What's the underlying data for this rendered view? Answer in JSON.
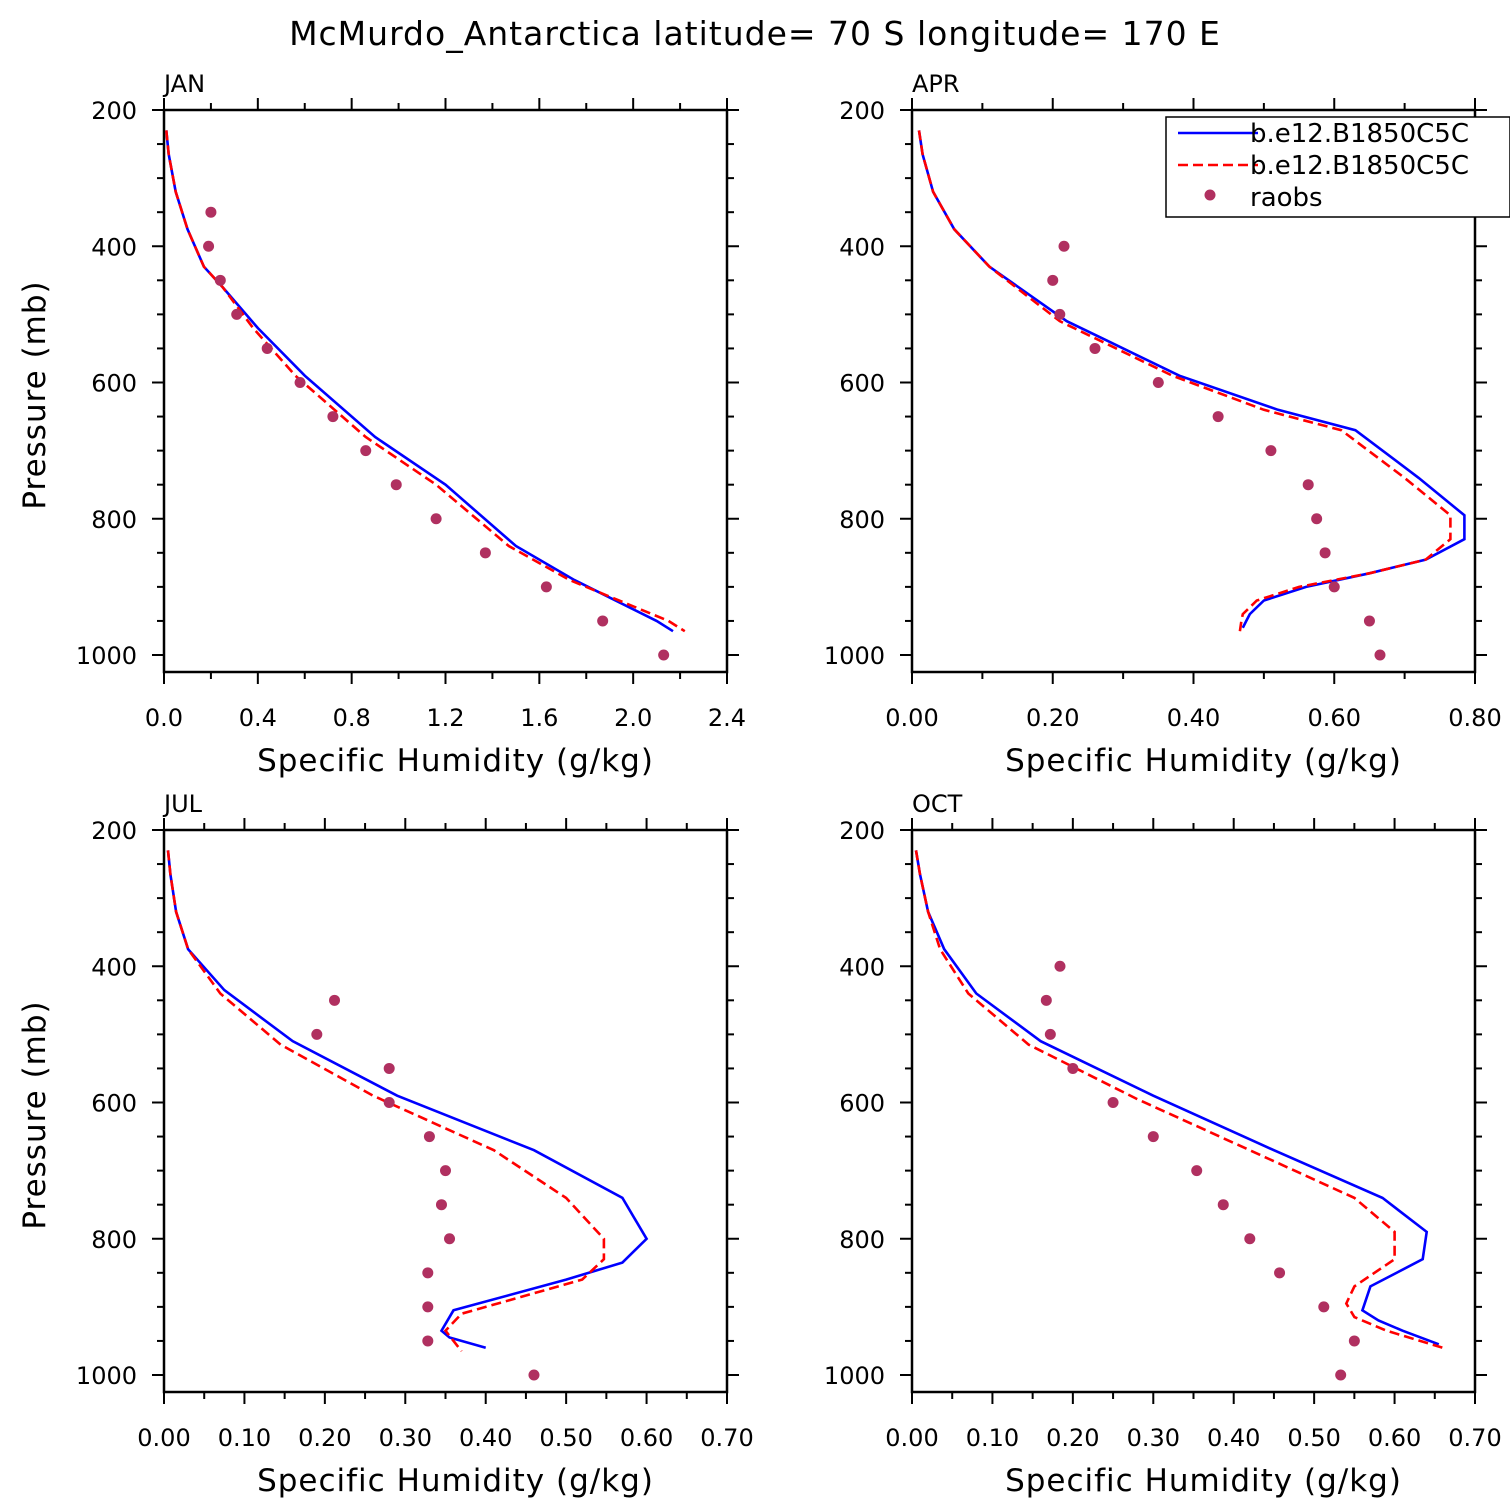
{
  "chart_data": {
    "title": "McMurdo_Antarctica  latitude= 70 S longitude= 170 E",
    "legend": {
      "placement": "top-right",
      "entries": [
        {
          "label": "b.e12.B1850C5C",
          "style": "solid",
          "color": "#0000ff"
        },
        {
          "label": "b.e12.B1850C5C",
          "style": "dashed",
          "color": "#ff0000"
        },
        {
          "label": "raobs",
          "style": "marker",
          "color": "#b03060"
        }
      ]
    },
    "panels": [
      {
        "type": "line",
        "label": "JAN",
        "xlabel": "Specific Humidity (g/kg)",
        "ylabel": "Pressure (mb)",
        "xlim": [
          0,
          2.4
        ],
        "ylim": [
          200,
          1025
        ],
        "xticks": [
          "0.0",
          "0.4",
          "0.8",
          "1.2",
          "1.6",
          "2.0",
          "2.4"
        ],
        "yticks": [
          "200",
          "400",
          "600",
          "800",
          "1000"
        ],
        "series": [
          {
            "name": "b.e12.B1850C5C",
            "x": [
              0.01,
              0.02,
              0.05,
              0.1,
              0.17,
              0.25,
              0.4,
              0.6,
              0.9,
              1.2,
              1.5,
              1.75,
              2.1,
              2.17
            ],
            "y": [
              230,
              265,
              320,
              375,
              430,
              460,
              520,
              590,
              680,
              750,
              840,
              890,
              950,
              965
            ]
          },
          {
            "name": "b.e12.B1850C5C",
            "x": [
              0.01,
              0.02,
              0.05,
              0.1,
              0.17,
              0.25,
              0.38,
              0.56,
              0.86,
              1.16,
              1.47,
              1.73,
              2.15,
              2.22
            ],
            "y": [
              230,
              265,
              320,
              375,
              430,
              460,
              520,
              590,
              680,
              750,
              840,
              890,
              950,
              965
            ]
          },
          {
            "name": "raobs",
            "x": [
              0.2,
              0.19,
              0.24,
              0.31,
              0.44,
              0.58,
              0.72,
              0.86,
              0.99,
              1.16,
              1.37,
              1.63,
              1.87,
              2.13
            ],
            "y": [
              350,
              400,
              450,
              500,
              550,
              600,
              650,
              700,
              750,
              800,
              850,
              900,
              950,
              1000
            ]
          }
        ]
      },
      {
        "type": "line",
        "label": "APR",
        "xlabel": "Specific Humidity (g/kg)",
        "ylabel": "",
        "xlim": [
          0,
          0.8
        ],
        "ylim": [
          200,
          1025
        ],
        "xticks": [
          "0.00",
          "0.20",
          "0.40",
          "0.60",
          "0.80"
        ],
        "yticks": [
          "200",
          "400",
          "600",
          "800",
          "1000"
        ],
        "series": [
          {
            "name": "b.e12.B1850C5C",
            "x": [
              0.01,
              0.015,
              0.03,
              0.06,
              0.11,
              0.22,
              0.28,
              0.38,
              0.52,
              0.63,
              0.72,
              0.785,
              0.785,
              0.73,
              0.65,
              0.56,
              0.5,
              0.48,
              0.475,
              0.47
            ],
            "y": [
              230,
              265,
              320,
              375,
              430,
              510,
              540,
              590,
              640,
              670,
              740,
              795,
              830,
              860,
              880,
              900,
              920,
              940,
              950,
              960
            ]
          },
          {
            "name": "b.e12.B1850C5C",
            "x": [
              0.01,
              0.015,
              0.03,
              0.06,
              0.11,
              0.21,
              0.27,
              0.37,
              0.5,
              0.61,
              0.7,
              0.765,
              0.765,
              0.73,
              0.65,
              0.55,
              0.49,
              0.47,
              0.468,
              0.466
            ],
            "y": [
              230,
              265,
              320,
              375,
              430,
              510,
              540,
              590,
              640,
              670,
              740,
              795,
              830,
              860,
              880,
              900,
              920,
              940,
              950,
              965
            ]
          },
          {
            "name": "raobs",
            "x": [
              0.216,
              0.2,
              0.21,
              0.26,
              0.35,
              0.435,
              0.51,
              0.563,
              0.575,
              0.587,
              0.6,
              0.65,
              0.665
            ],
            "y": [
              400,
              450,
              500,
              550,
              600,
              650,
              700,
              750,
              800,
              850,
              900,
              950,
              1000
            ]
          }
        ]
      },
      {
        "type": "line",
        "label": "JUL",
        "xlabel": "Specific Humidity (g/kg)",
        "ylabel": "Pressure (mb)",
        "xlim": [
          0,
          0.7
        ],
        "ylim": [
          200,
          1025
        ],
        "xticks": [
          "0.00",
          "0.10",
          "0.20",
          "0.30",
          "0.40",
          "0.50",
          "0.60",
          "0.70"
        ],
        "yticks": [
          "200",
          "400",
          "600",
          "800",
          "1000"
        ],
        "series": [
          {
            "name": "b.e12.B1850C5C",
            "x": [
              0.005,
              0.008,
              0.015,
              0.03,
              0.075,
              0.16,
              0.29,
              0.46,
              0.57,
              0.6,
              0.57,
              0.5,
              0.36,
              0.345,
              0.355,
              0.4
            ],
            "y": [
              230,
              265,
              320,
              375,
              435,
              510,
              590,
              670,
              740,
              800,
              835,
              860,
              905,
              935,
              945,
              960
            ]
          },
          {
            "name": "b.e12.B1850C5C",
            "x": [
              0.005,
              0.008,
              0.015,
              0.03,
              0.07,
              0.145,
              0.26,
              0.41,
              0.5,
              0.547,
              0.547,
              0.52,
              0.43,
              0.37,
              0.35,
              0.37
            ],
            "y": [
              230,
              265,
              320,
              375,
              440,
              515,
              590,
              670,
              740,
              800,
              830,
              860,
              890,
              910,
              935,
              965
            ]
          },
          {
            "name": "raobs",
            "x": [
              0.212,
              0.19,
              0.28,
              0.28,
              0.33,
              0.35,
              0.345,
              0.355,
              0.328,
              0.328,
              0.328,
              0.46
            ],
            "y": [
              450,
              500,
              550,
              600,
              650,
              700,
              750,
              800,
              850,
              900,
              950,
              1000
            ]
          }
        ]
      },
      {
        "type": "line",
        "label": "OCT",
        "xlabel": "Specific Humidity (g/kg)",
        "ylabel": "",
        "xlim": [
          0,
          0.7
        ],
        "ylim": [
          200,
          1025
        ],
        "xticks": [
          "0.00",
          "0.10",
          "0.20",
          "0.30",
          "0.40",
          "0.50",
          "0.60",
          "0.70"
        ],
        "yticks": [
          "200",
          "400",
          "600",
          "800",
          "1000"
        ],
        "series": [
          {
            "name": "b.e12.B1850C5C",
            "x": [
              0.005,
              0.01,
              0.02,
              0.04,
              0.08,
              0.16,
              0.3,
              0.45,
              0.585,
              0.64,
              0.635,
              0.57,
              0.56,
              0.58,
              0.61,
              0.655
            ],
            "y": [
              230,
              265,
              320,
              375,
              440,
              510,
              590,
              670,
              740,
              790,
              830,
              870,
              905,
              920,
              935,
              955
            ]
          },
          {
            "name": "b.e12.B1850C5C",
            "x": [
              0.005,
              0.01,
              0.02,
              0.035,
              0.07,
              0.145,
              0.28,
              0.42,
              0.55,
              0.6,
              0.6,
              0.55,
              0.54,
              0.55,
              0.59,
              0.66
            ],
            "y": [
              230,
              265,
              320,
              375,
              440,
              515,
              595,
              670,
              740,
              790,
              830,
              870,
              895,
              915,
              935,
              960
            ]
          },
          {
            "name": "raobs",
            "x": [
              0.184,
              0.167,
              0.172,
              0.2,
              0.25,
              0.3,
              0.354,
              0.387,
              0.42,
              0.457,
              0.512,
              0.55,
              0.533
            ],
            "y": [
              400,
              450,
              500,
              550,
              600,
              650,
              700,
              750,
              800,
              850,
              900,
              950,
              1000
            ]
          }
        ]
      }
    ]
  }
}
